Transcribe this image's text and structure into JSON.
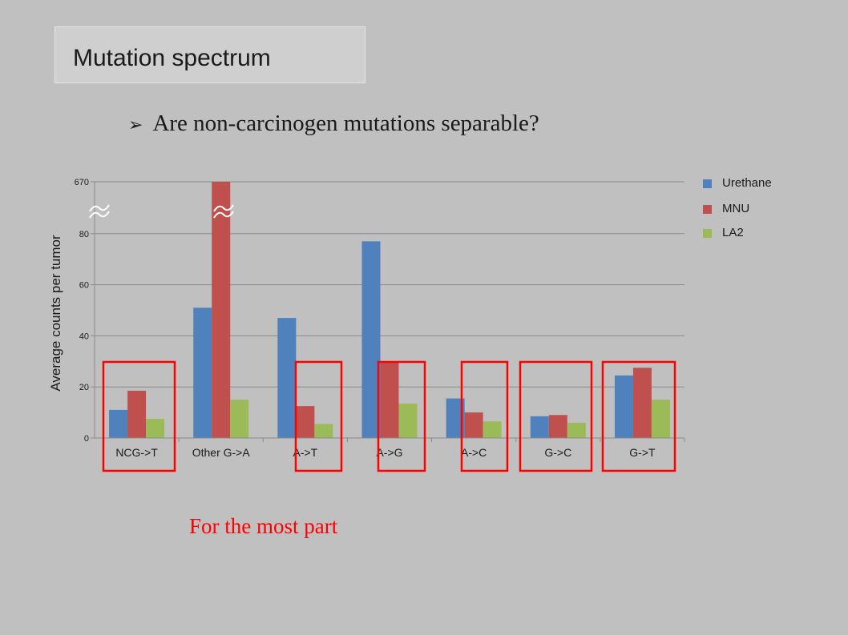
{
  "slide": {
    "title": "Mutation spectrum",
    "bullet_glyph": "➢",
    "question": "Are non-carcinogen mutations separable?",
    "conclusion": "For the most part",
    "highlight_color": "#ff0000"
  },
  "chart_data": {
    "type": "bar",
    "ylabel": "Average counts per tumor",
    "categories": [
      "NCG->T",
      "Other G->A",
      "A->T",
      "A->G",
      "A->C",
      "G->C",
      "G->T"
    ],
    "series": [
      {
        "name": "Urethane",
        "color": "#4f81bd",
        "values": [
          11,
          51,
          47,
          77,
          15.5,
          8.5,
          24.5
        ]
      },
      {
        "name": "MNU",
        "color": "#c0504d",
        "values": [
          18.5,
          670,
          12.5,
          30,
          10,
          9,
          27.5
        ]
      },
      {
        "name": "LA2",
        "color": "#9bbb59",
        "values": [
          7.5,
          15,
          5.5,
          13.5,
          6.5,
          6,
          15
        ]
      }
    ],
    "yticks": [
      0,
      20,
      40,
      60,
      80,
      670
    ],
    "axis_break": {
      "from": 80,
      "to": 670
    },
    "grid": true,
    "legend_position": "top-right",
    "highlighted_categories": [
      "NCG->T",
      "A->T",
      "A->G",
      "A->C",
      "G->C",
      "G->T"
    ]
  }
}
